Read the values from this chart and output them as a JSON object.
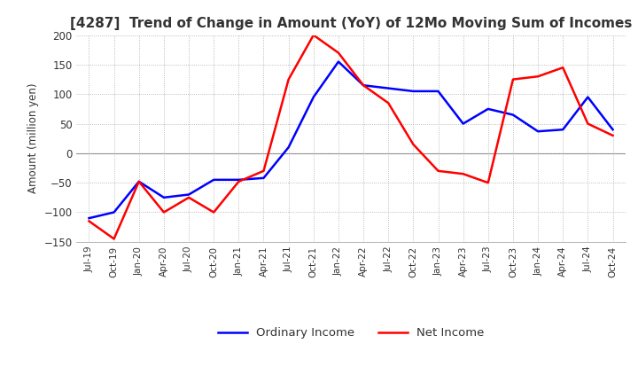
{
  "title": "[4287]  Trend of Change in Amount (YoY) of 12Mo Moving Sum of Incomes",
  "ylabel": "Amount (million yen)",
  "ylim": [
    -150,
    200
  ],
  "yticks": [
    -150,
    -100,
    -50,
    0,
    50,
    100,
    150,
    200
  ],
  "x_labels": [
    "Jul-19",
    "Oct-19",
    "Jan-20",
    "Apr-20",
    "Jul-20",
    "Oct-20",
    "Jan-21",
    "Apr-21",
    "Jul-21",
    "Oct-21",
    "Jan-22",
    "Apr-22",
    "Jul-22",
    "Oct-22",
    "Jan-23",
    "Apr-23",
    "Jul-23",
    "Oct-23",
    "Jan-24",
    "Apr-24",
    "Jul-24",
    "Oct-24"
  ],
  "ordinary_income": [
    -110,
    -100,
    -48,
    -75,
    -70,
    -45,
    -45,
    -42,
    10,
    95,
    155,
    115,
    110,
    105,
    105,
    50,
    75,
    65,
    37,
    40,
    95,
    40
  ],
  "net_income": [
    -115,
    -145,
    -48,
    -100,
    -75,
    -100,
    -48,
    -30,
    125,
    200,
    170,
    115,
    85,
    15,
    -30,
    -35,
    -50,
    125,
    130,
    145,
    50,
    30
  ],
  "ordinary_color": "#0000ff",
  "net_color": "#ff0000",
  "background_color": "#ffffff",
  "grid_color": "#aaaaaa",
  "zero_line_color": "#888888",
  "title_color": "#333333",
  "tick_color": "#333333",
  "legend_labels": [
    "Ordinary Income",
    "Net Income"
  ],
  "linewidth": 1.8
}
